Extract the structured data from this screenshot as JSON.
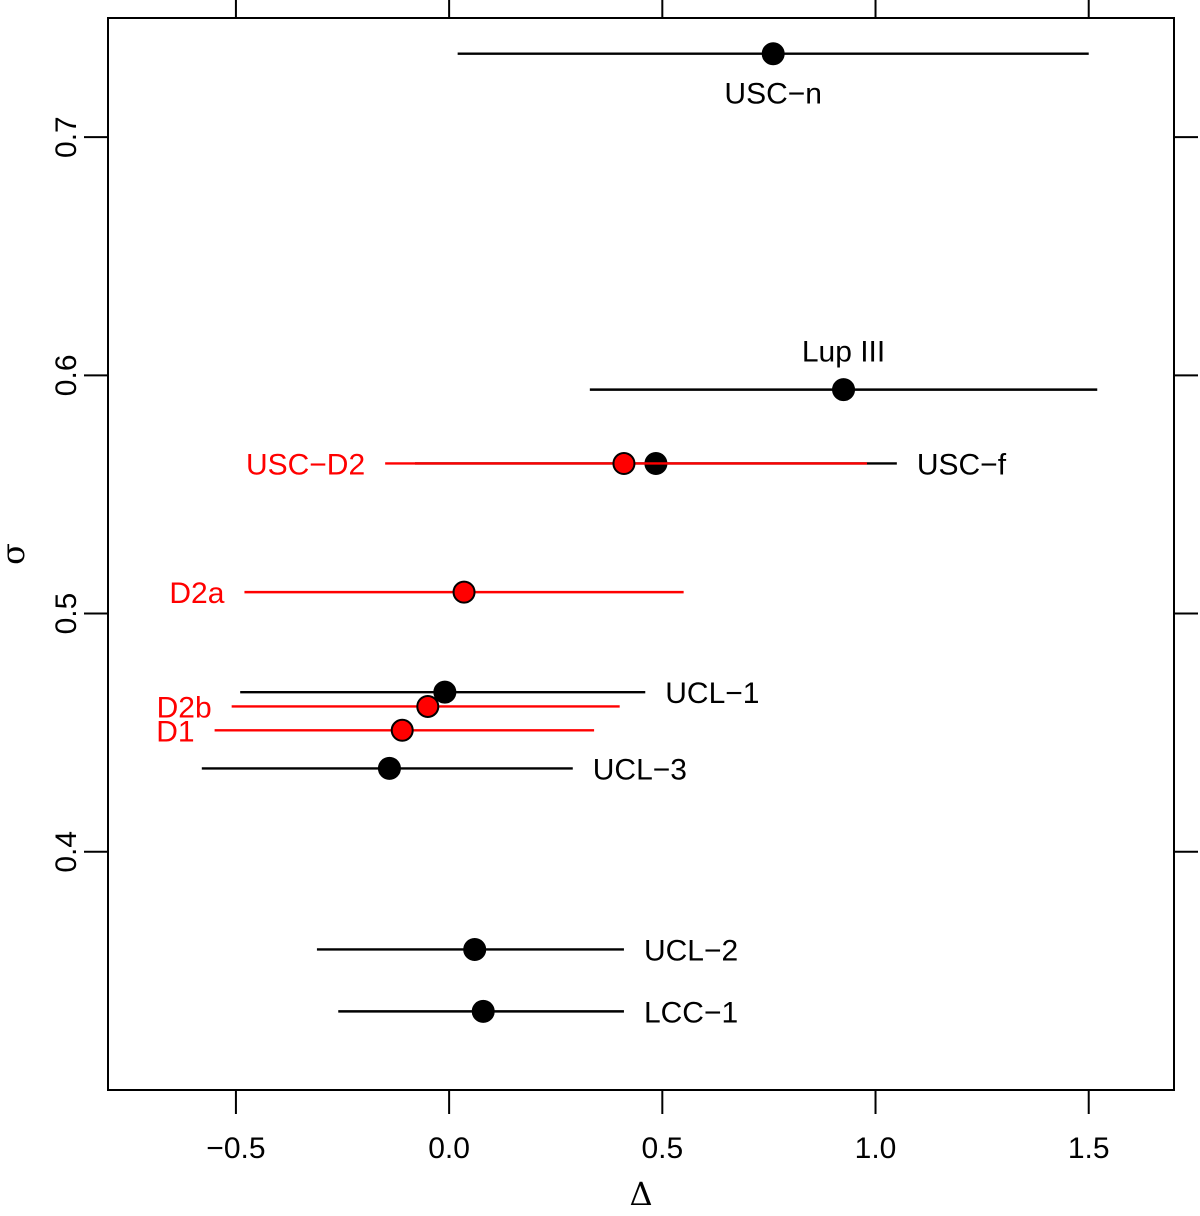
{
  "chart_data": {
    "type": "scatter",
    "title": "",
    "xlabel": "Δ",
    "ylabel": "σ",
    "xlim": [
      -0.8,
      1.7
    ],
    "ylim": [
      0.3,
      0.75
    ],
    "x_ticks": [
      -0.5,
      0.0,
      0.5,
      1.0,
      1.5
    ],
    "x_tick_labels": [
      "−0.5",
      "0.0",
      "0.5",
      "1.0",
      "1.5"
    ],
    "y_ticks": [
      0.4,
      0.5,
      0.6,
      0.7
    ],
    "y_tick_labels": [
      "0.4",
      "0.5",
      "0.6",
      "0.7"
    ],
    "colors": {
      "black": "#000000",
      "red": "#ff0000"
    },
    "series": [
      {
        "name": "black",
        "color": "#000000",
        "points": [
          {
            "label": "USC−n",
            "x": 0.76,
            "y": 0.735,
            "xmin": 0.02,
            "xmax": 1.5,
            "label_pos": "below"
          },
          {
            "label": "Lup III",
            "x": 0.925,
            "y": 0.594,
            "xmin": 0.33,
            "xmax": 1.52,
            "label_pos": "above"
          },
          {
            "label": "USC−f",
            "x": 0.485,
            "y": 0.563,
            "xmin": -0.08,
            "xmax": 1.05,
            "label_pos": "right"
          },
          {
            "label": "UCL−1",
            "x": -0.01,
            "y": 0.467,
            "xmin": -0.49,
            "xmax": 0.46,
            "label_pos": "right"
          },
          {
            "label": "UCL−3",
            "x": -0.14,
            "y": 0.435,
            "xmin": -0.58,
            "xmax": 0.29,
            "label_pos": "right"
          },
          {
            "label": "UCL−2",
            "x": 0.06,
            "y": 0.359,
            "xmin": -0.31,
            "xmax": 0.41,
            "label_pos": "right"
          },
          {
            "label": "LCC−1",
            "x": 0.08,
            "y": 0.333,
            "xmin": -0.26,
            "xmax": 0.41,
            "label_pos": "right"
          }
        ]
      },
      {
        "name": "red",
        "color": "#ff0000",
        "points": [
          {
            "label": "USC−D2",
            "x": 0.41,
            "y": 0.563,
            "xmin": -0.15,
            "xmax": 0.98,
            "label_pos": "left"
          },
          {
            "label": "D2a",
            "x": 0.035,
            "y": 0.509,
            "xmin": -0.48,
            "xmax": 0.55,
            "label_pos": "left"
          },
          {
            "label": "D2b",
            "x": -0.05,
            "y": 0.461,
            "xmin": -0.51,
            "xmax": 0.4,
            "label_pos": "left"
          },
          {
            "label": "D1",
            "x": -0.11,
            "y": 0.451,
            "xmin": -0.55,
            "xmax": 0.34,
            "label_pos": "left"
          }
        ]
      }
    ]
  }
}
